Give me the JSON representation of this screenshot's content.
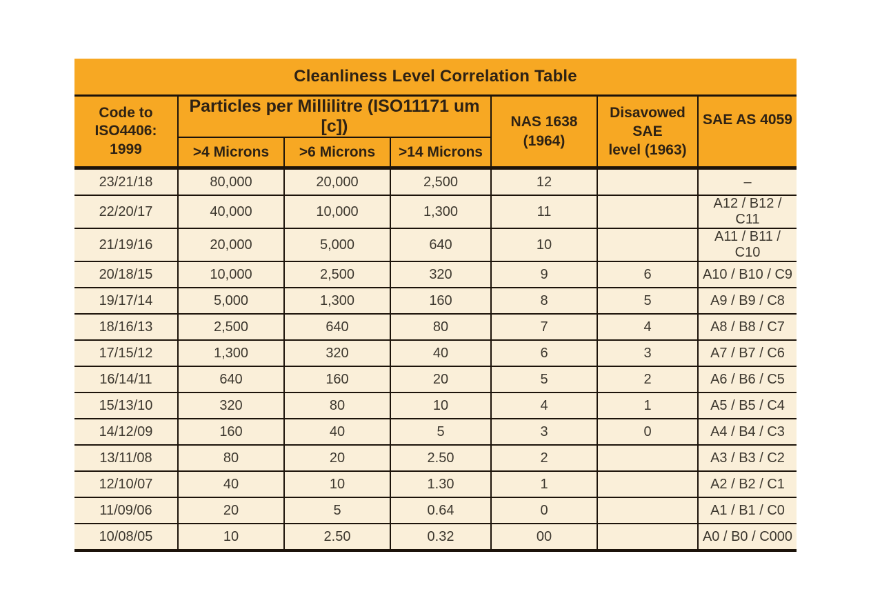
{
  "table": {
    "title": "Cleanliness Level Correlation Table",
    "columns": {
      "code": "Code to\nISO4406: 1999",
      "particles_group": "Particles per Millilitre (ISO11171 um [c])",
      "microns4": ">4 Microns",
      "microns6": ">6 Microns",
      "microns14": ">14 Microns",
      "nas": "NAS 1638\n(1964)",
      "disavowed": "Disavowed SAE\nlevel (1963)",
      "sae": "SAE AS 4059"
    },
    "rows": [
      [
        "23/21/18",
        "80,000",
        "20,000",
        "2,500",
        "12",
        "",
        "–"
      ],
      [
        "22/20/17",
        "40,000",
        "10,000",
        "1,300",
        "11",
        "",
        "A12 / B12 / C11"
      ],
      [
        "21/19/16",
        "20,000",
        "5,000",
        "640",
        "10",
        "",
        "A11 / B11 / C10"
      ],
      [
        "20/18/15",
        "10,000",
        "2,500",
        "320",
        "9",
        "6",
        "A10 / B10 / C9"
      ],
      [
        "19/17/14",
        "5,000",
        "1,300",
        "160",
        "8",
        "5",
        "A9 / B9 / C8"
      ],
      [
        "18/16/13",
        "2,500",
        "640",
        "80",
        "7",
        "4",
        "A8 / B8 / C7"
      ],
      [
        "17/15/12",
        "1,300",
        "320",
        "40",
        "6",
        "3",
        "A7 / B7 / C6"
      ],
      [
        "16/14/11",
        "640",
        "160",
        "20",
        "5",
        "2",
        "A6 / B6 / C5"
      ],
      [
        "15/13/10",
        "320",
        "80",
        "10",
        "4",
        "1",
        "A5 / B5 / C4"
      ],
      [
        "14/12/09",
        "160",
        "40",
        "5",
        "3",
        "0",
        "A4 / B4 / C3"
      ],
      [
        "13/11/08",
        "80",
        "20",
        "2.50",
        "2",
        "",
        "A3 / B3 / C2"
      ],
      [
        "12/10/07",
        "40",
        "10",
        "1.30",
        "1",
        "",
        "A2 / B2 / C1"
      ],
      [
        "11/09/06",
        "20",
        "5",
        "0.64",
        "0",
        "",
        "A1 / B1 / C0"
      ],
      [
        "10/08/05",
        "10",
        "2.50",
        "0.32",
        "00",
        "",
        "A0 / B0 / C000"
      ]
    ],
    "colors": {
      "header_bg": "#F7A823",
      "row_bg": "#FAEFD9",
      "line": "#1C130A"
    }
  }
}
